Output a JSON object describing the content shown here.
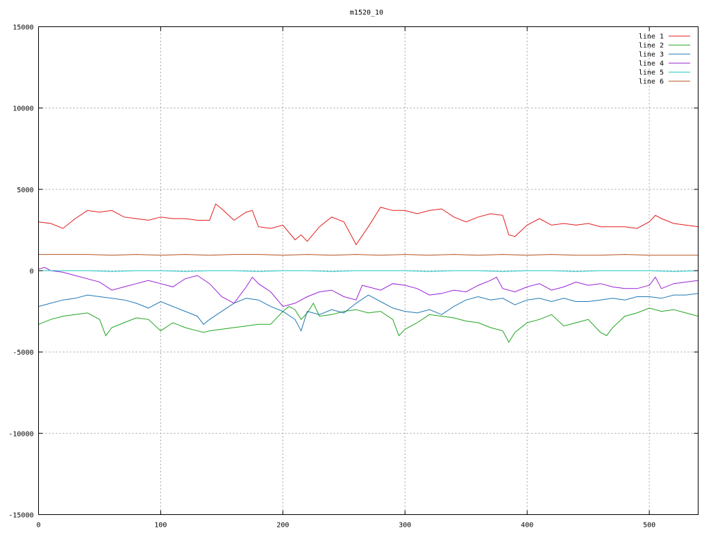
{
  "chart_data": {
    "type": "line",
    "title": "m1520_10",
    "xlabel": "",
    "ylabel": "",
    "xlim": [
      0,
      540
    ],
    "ylim": [
      -15000,
      15000
    ],
    "x_ticks": [
      0,
      100,
      200,
      300,
      400,
      500
    ],
    "y_ticks": [
      -15000,
      -10000,
      -5000,
      0,
      5000,
      10000,
      15000
    ],
    "grid": true,
    "legend_position": "top-right",
    "series": [
      {
        "name": "line 1",
        "color": "#e41a1c",
        "x": [
          0,
          10,
          20,
          30,
          40,
          50,
          60,
          70,
          80,
          90,
          100,
          110,
          120,
          130,
          140,
          145,
          150,
          160,
          170,
          175,
          180,
          190,
          200,
          210,
          215,
          220,
          230,
          240,
          250,
          260,
          270,
          280,
          290,
          300,
          310,
          320,
          330,
          340,
          350,
          360,
          370,
          380,
          385,
          390,
          400,
          410,
          420,
          430,
          440,
          450,
          460,
          470,
          480,
          490,
          500,
          505,
          510,
          520,
          530,
          540
        ],
        "values": [
          3000,
          2900,
          2600,
          3200,
          3700,
          3600,
          3700,
          3300,
          3200,
          3100,
          3300,
          3200,
          3200,
          3100,
          3100,
          4100,
          3800,
          3100,
          3600,
          3700,
          2700,
          2600,
          2800,
          1900,
          2200,
          1800,
          2700,
          3300,
          3000,
          1600,
          2700,
          3900,
          3700,
          3700,
          3500,
          3700,
          3800,
          3300,
          3000,
          3300,
          3500,
          3400,
          2200,
          2100,
          2800,
          3200,
          2800,
          2900,
          2800,
          2900,
          2700,
          2700,
          2700,
          2600,
          3000,
          3400,
          3200,
          2900,
          2800,
          2700
        ]
      },
      {
        "name": "line 2",
        "color": "#1fa31f",
        "x": [
          0,
          10,
          20,
          30,
          40,
          50,
          55,
          60,
          70,
          80,
          90,
          100,
          110,
          120,
          130,
          135,
          140,
          150,
          160,
          170,
          180,
          190,
          200,
          205,
          210,
          215,
          220,
          225,
          230,
          240,
          250,
          260,
          270,
          280,
          290,
          295,
          300,
          310,
          320,
          330,
          340,
          350,
          360,
          370,
          380,
          385,
          390,
          400,
          410,
          420,
          430,
          440,
          450,
          460,
          465,
          470,
          480,
          490,
          500,
          510,
          520,
          530,
          540
        ],
        "values": [
          -3300,
          -3000,
          -2800,
          -2700,
          -2600,
          -3000,
          -4000,
          -3500,
          -3200,
          -2900,
          -3000,
          -3700,
          -3200,
          -3500,
          -3700,
          -3800,
          -3700,
          -3600,
          -3500,
          -3400,
          -3300,
          -3300,
          -2500,
          -2200,
          -2400,
          -3000,
          -2600,
          -2000,
          -2800,
          -2700,
          -2500,
          -2400,
          -2600,
          -2500,
          -3000,
          -4000,
          -3600,
          -3200,
          -2700,
          -2800,
          -2900,
          -3100,
          -3200,
          -3500,
          -3700,
          -4400,
          -3800,
          -3200,
          -3000,
          -2700,
          -3400,
          -3200,
          -3000,
          -3800,
          -4000,
          -3500,
          -2800,
          -2600,
          -2300,
          -2500,
          -2400,
          -2600,
          -2800
        ]
      },
      {
        "name": "line 3",
        "color": "#1f77b4",
        "x": [
          0,
          10,
          20,
          30,
          40,
          50,
          60,
          70,
          80,
          90,
          100,
          110,
          120,
          130,
          135,
          140,
          150,
          160,
          170,
          180,
          190,
          200,
          210,
          215,
          220,
          230,
          240,
          250,
          260,
          270,
          280,
          290,
          300,
          310,
          320,
          330,
          340,
          350,
          360,
          370,
          380,
          390,
          400,
          410,
          420,
          430,
          440,
          450,
          460,
          470,
          480,
          490,
          500,
          510,
          520,
          530,
          540
        ],
        "values": [
          -2200,
          -2000,
          -1800,
          -1700,
          -1500,
          -1600,
          -1700,
          -1800,
          -2000,
          -2300,
          -1900,
          -2200,
          -2500,
          -2800,
          -3300,
          -3000,
          -2500,
          -2000,
          -1700,
          -1800,
          -2200,
          -2500,
          -3000,
          -3700,
          -2500,
          -2700,
          -2400,
          -2600,
          -2000,
          -1500,
          -1900,
          -2300,
          -2500,
          -2600,
          -2400,
          -2700,
          -2200,
          -1800,
          -1600,
          -1800,
          -1700,
          -2100,
          -1800,
          -1700,
          -1900,
          -1700,
          -1900,
          -1900,
          -1800,
          -1700,
          -1800,
          -1600,
          -1600,
          -1700,
          -1500,
          -1500,
          -1400
        ]
      },
      {
        "name": "line 4",
        "color": "#9a1fd6",
        "x": [
          0,
          5,
          10,
          20,
          30,
          40,
          50,
          60,
          70,
          80,
          90,
          100,
          110,
          120,
          130,
          140,
          150,
          160,
          170,
          175,
          180,
          190,
          200,
          210,
          220,
          230,
          240,
          250,
          260,
          265,
          270,
          280,
          290,
          300,
          310,
          320,
          330,
          340,
          350,
          360,
          370,
          375,
          380,
          390,
          400,
          410,
          420,
          430,
          440,
          450,
          460,
          470,
          480,
          490,
          500,
          505,
          510,
          520,
          530,
          540
        ],
        "values": [
          100,
          200,
          0,
          -100,
          -300,
          -500,
          -700,
          -1200,
          -1000,
          -800,
          -600,
          -800,
          -1000,
          -500,
          -300,
          -800,
          -1600,
          -2000,
          -1000,
          -400,
          -800,
          -1300,
          -2200,
          -2000,
          -1600,
          -1300,
          -1200,
          -1600,
          -1800,
          -900,
          -1000,
          -1200,
          -800,
          -900,
          -1100,
          -1500,
          -1400,
          -1200,
          -1300,
          -900,
          -600,
          -400,
          -1100,
          -1300,
          -1000,
          -800,
          -1200,
          -1000,
          -700,
          -900,
          -800,
          -1000,
          -1100,
          -1100,
          -900,
          -400,
          -1100,
          -800,
          -700,
          -600
        ]
      },
      {
        "name": "line 5",
        "color": "#17c7c7",
        "x": [
          0,
          20,
          40,
          60,
          80,
          100,
          120,
          140,
          160,
          180,
          200,
          220,
          240,
          260,
          280,
          300,
          320,
          340,
          360,
          380,
          400,
          420,
          440,
          460,
          480,
          500,
          520,
          540
        ],
        "values": [
          0,
          0,
          0,
          -50,
          0,
          0,
          -50,
          0,
          0,
          -50,
          0,
          0,
          -50,
          0,
          0,
          0,
          -50,
          0,
          0,
          -50,
          0,
          0,
          -50,
          0,
          0,
          0,
          -50,
          0
        ]
      },
      {
        "name": "line 6",
        "color": "#b5501f",
        "x": [
          0,
          20,
          40,
          60,
          80,
          100,
          120,
          140,
          160,
          180,
          200,
          220,
          240,
          260,
          280,
          300,
          320,
          340,
          360,
          380,
          400,
          420,
          440,
          460,
          480,
          500,
          520,
          540
        ],
        "values": [
          1000,
          1000,
          1000,
          950,
          1000,
          950,
          1000,
          950,
          1000,
          1000,
          950,
          1000,
          950,
          1000,
          950,
          1000,
          950,
          1000,
          950,
          1000,
          950,
          1000,
          950,
          950,
          1000,
          950,
          950,
          950
        ]
      }
    ]
  }
}
